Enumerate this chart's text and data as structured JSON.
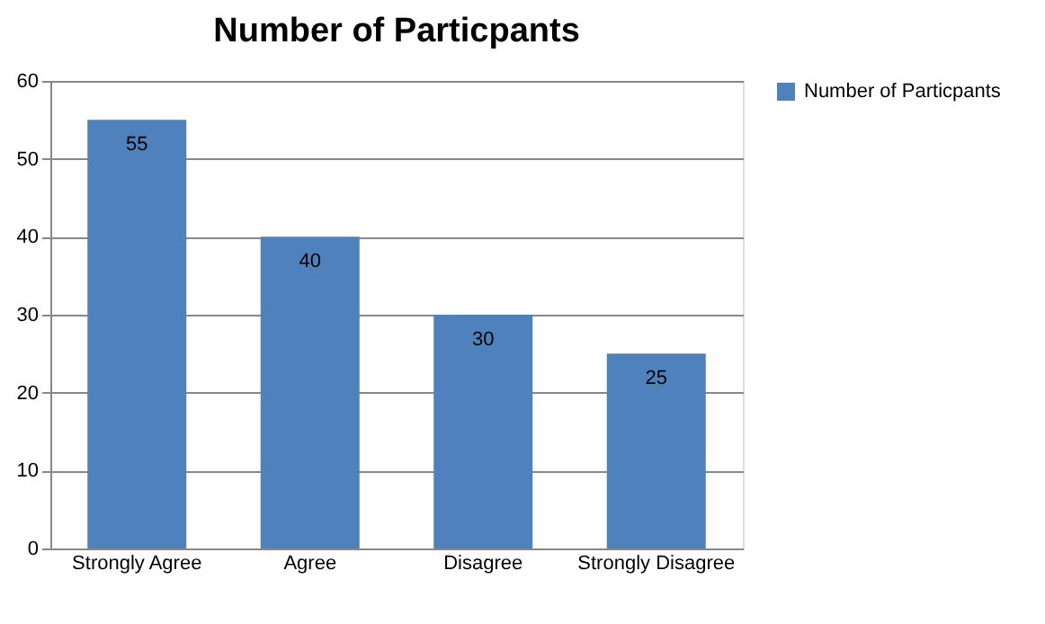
{
  "chart_data": {
    "type": "bar",
    "title": "Number of Particpants",
    "categories": [
      "Strongly Agree",
      "Agree",
      "Disagree",
      "Strongly Disagree"
    ],
    "series": [
      {
        "name": "Number of Particpants",
        "color": "#4f81bd",
        "values": [
          55,
          40,
          30,
          25
        ]
      }
    ],
    "ylim": [
      0,
      60
    ],
    "yticks": [
      0,
      10,
      20,
      30,
      40,
      50,
      60
    ],
    "grid": "y",
    "legend": "right",
    "data_labels": true
  }
}
